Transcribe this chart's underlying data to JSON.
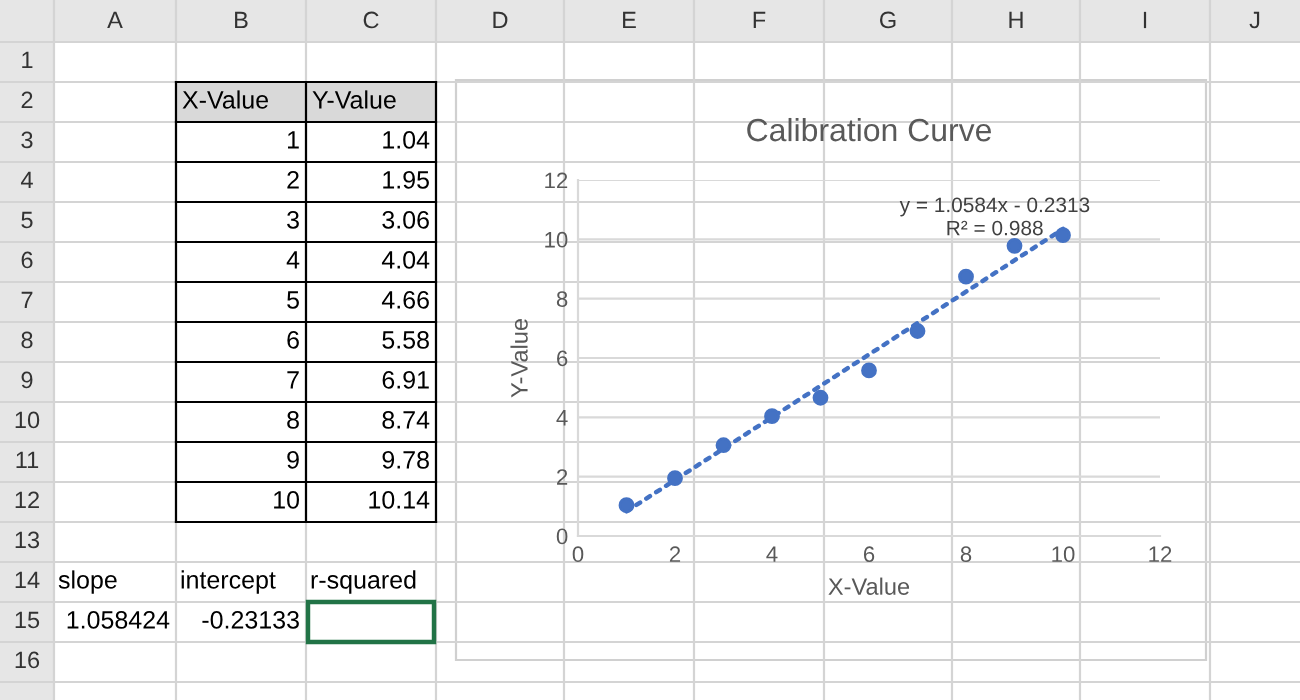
{
  "chart_data": {
    "type": "scatter",
    "title": "Calibration Curve",
    "xlabel": "X-Value",
    "ylabel": "Y-Value",
    "x": [
      1,
      2,
      3,
      4,
      5,
      6,
      7,
      8,
      9,
      10
    ],
    "series": [
      {
        "color": "#4472c4",
        "marker": "circle",
        "values": [
          1.04,
          1.95,
          3.06,
          4.04,
          4.66,
          5.58,
          6.91,
          8.74,
          9.78,
          10.14
        ]
      },
      {
        "type": "line",
        "color": "#4472c4",
        "line_style": "dotted",
        "marker": "none",
        "x": [
          1,
          10
        ],
        "values": [
          0.83,
          10.35
        ]
      }
    ],
    "xlim": [
      0,
      12
    ],
    "ylim": [
      0,
      12
    ],
    "xticks": [
      0,
      2,
      4,
      6,
      8,
      10,
      12
    ],
    "yticks": [
      0,
      2,
      4,
      6,
      8,
      10,
      12
    ],
    "grid": "y",
    "annotations": [
      "y = 1.0584x - 0.2313",
      "R² = 0.988",
      "slope",
      "intercept",
      "r-squared",
      "1.058424",
      "-0.23133",
      "A",
      "B",
      "C",
      "D",
      "E",
      "F",
      "G",
      "H",
      "I",
      "J",
      "1",
      "2",
      "3",
      "4",
      "5",
      "6",
      "7",
      "8",
      "9",
      "10",
      "11",
      "12",
      "13",
      "14",
      "15",
      "16",
      "1.04",
      "1.95",
      "3.06",
      "4.04",
      "4.66",
      "5.58",
      "6.91",
      "8.74",
      "9.78",
      "10.14"
    ]
  }
}
